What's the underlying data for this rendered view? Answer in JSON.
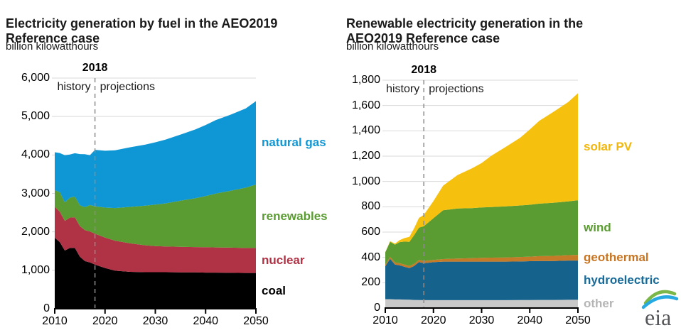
{
  "page": {
    "background": "#ffffff"
  },
  "logo": {
    "text": "eia"
  },
  "chart_data": [
    {
      "name": "electricity-generation-by-fuel",
      "type": "area",
      "stacked": true,
      "title": "Electricity generation by fuel in the AEO2019 Reference case",
      "subtitle": "billion kilowatthours",
      "grid": "horizontal",
      "legend_position": "right-of-plot",
      "xlim": [
        2010,
        2050
      ],
      "ylim": [
        0,
        6000
      ],
      "x": [
        2010,
        2011,
        2012,
        2013,
        2014,
        2015,
        2016,
        2017,
        2018,
        2020,
        2022,
        2025,
        2028,
        2030,
        2032,
        2035,
        2038,
        2040,
        2042,
        2045,
        2048,
        2050
      ],
      "xticks": {
        "values": [
          2010,
          2020,
          2030,
          2040,
          2050
        ],
        "labels": [
          "2010",
          "2020",
          "2030",
          "2040",
          "2050"
        ]
      },
      "yticks": {
        "values": [
          0,
          1000,
          2000,
          3000,
          4000,
          5000,
          6000
        ],
        "labels": [
          "0",
          "1,000",
          "2,000",
          "3,000",
          "4,000",
          "5,000",
          "6,000"
        ]
      },
      "divider": {
        "year": 2018,
        "label": "2018",
        "left_label": "history",
        "right_label": "projections"
      },
      "series": [
        {
          "name": "coal",
          "color": "#000000",
          "label_color": "#000000",
          "values": [
            1847,
            1733,
            1514,
            1581,
            1582,
            1352,
            1239,
            1206,
            1146,
            1060,
            990,
            960,
            950,
            950,
            950,
            945,
            945,
            940,
            940,
            935,
            930,
            930
          ]
        },
        {
          "name": "nuclear",
          "color": "#b03245",
          "label_color": "#b03245",
          "values": [
            807,
            790,
            769,
            789,
            797,
            797,
            806,
            805,
            807,
            790,
            780,
            740,
            700,
            680,
            670,
            665,
            660,
            660,
            655,
            655,
            650,
            650
          ]
        },
        {
          "name": "renewables",
          "color": "#5a9c31",
          "label_color": "#5a9c31",
          "values": [
            428,
            513,
            484,
            517,
            539,
            540,
            597,
            687,
            713,
            780,
            850,
            950,
            1030,
            1080,
            1120,
            1200,
            1270,
            1330,
            1400,
            1480,
            1570,
            1650
          ]
        },
        {
          "name": "natural gas",
          "color": "#0f97d5",
          "label_color": "#0f97d5",
          "values": [
            988,
            1014,
            1226,
            1124,
            1127,
            1333,
            1378,
            1296,
            1468,
            1480,
            1500,
            1550,
            1590,
            1620,
            1660,
            1720,
            1790,
            1850,
            1910,
            1980,
            2060,
            2170
          ]
        }
      ]
    },
    {
      "name": "renewable-electricity-generation",
      "type": "area",
      "stacked": true,
      "title": "Renewable electricity generation in the AEO2019 Reference case",
      "subtitle": "billion kilowatthours",
      "grid": "horizontal",
      "legend_position": "right-of-plot",
      "xlim": [
        2010,
        2050
      ],
      "ylim": [
        0,
        1800
      ],
      "x": [
        2010,
        2011,
        2012,
        2013,
        2014,
        2015,
        2016,
        2017,
        2018,
        2020,
        2022,
        2025,
        2028,
        2030,
        2032,
        2035,
        2038,
        2040,
        2042,
        2045,
        2048,
        2050
      ],
      "xticks": {
        "values": [
          2010,
          2020,
          2030,
          2040,
          2050
        ],
        "labels": [
          "2010",
          "2020",
          "2030",
          "2040",
          "2050"
        ]
      },
      "yticks": {
        "values": [
          0,
          200,
          400,
          600,
          800,
          1000,
          1200,
          1400,
          1600,
          1800
        ],
        "labels": [
          "0",
          "200",
          "400",
          "600",
          "800",
          "1,000",
          "1,200",
          "1,400",
          "1,600",
          "1,800"
        ]
      },
      "divider": {
        "year": 2018,
        "label": "2018",
        "left_label": "history",
        "right_label": "projections"
      },
      "series": [
        {
          "name": "other",
          "color": "#c9c9c9",
          "label_color": "#b5b5b5",
          "values": [
            70,
            70,
            68,
            68,
            67,
            66,
            64,
            63,
            62,
            62,
            62,
            62,
            62,
            62,
            62,
            62,
            63,
            63,
            64,
            64,
            65,
            65
          ]
        },
        {
          "name": "hydroelectric",
          "color": "#15638d",
          "label_color": "#176a99",
          "values": [
            260,
            319,
            276,
            269,
            259,
            249,
            268,
            300,
            292,
            300,
            305,
            305,
            305,
            305,
            305,
            305,
            305,
            307,
            308,
            308,
            310,
            310
          ]
        },
        {
          "name": "geothermal",
          "color": "#c57a28",
          "label_color": "#c87420",
          "values": [
            15,
            15,
            16,
            16,
            17,
            17,
            17,
            18,
            17,
            18,
            20,
            24,
            27,
            30,
            31,
            33,
            35,
            36,
            38,
            40,
            43,
            45
          ]
        },
        {
          "name": "wind",
          "color": "#5a9c31",
          "label_color": "#5a9c31",
          "values": [
            95,
            120,
            141,
            168,
            182,
            191,
            227,
            254,
            275,
            330,
            385,
            395,
            395,
            398,
            400,
            403,
            407,
            410,
            415,
            420,
            425,
            432
          ]
        },
        {
          "name": "solar PV",
          "color": "#f6c10e",
          "label_color": "#f2b70d",
          "values": [
            2,
            4,
            8,
            16,
            28,
            39,
            55,
            77,
            90,
            135,
            195,
            265,
            315,
            350,
            405,
            470,
            535,
            595,
            655,
            720,
            785,
            845
          ]
        }
      ]
    }
  ]
}
